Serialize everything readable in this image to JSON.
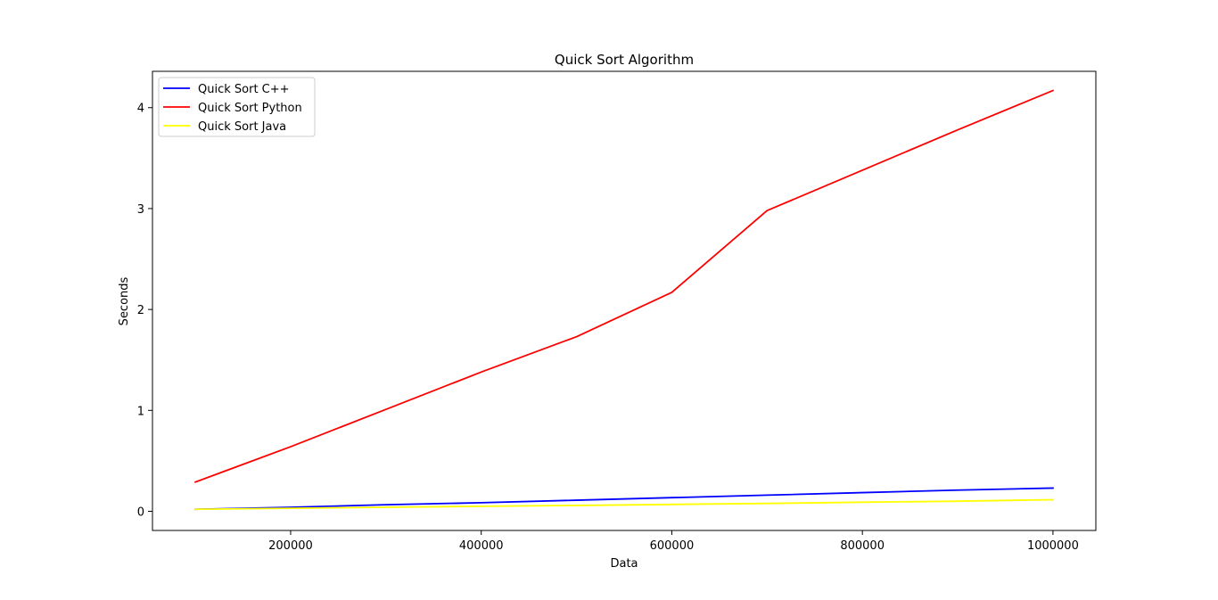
{
  "chart_data": {
    "type": "line",
    "title": "Quick Sort Algorithm",
    "xlabel": "Data",
    "ylabel": "Seconds",
    "xlim": [
      55000,
      1045000
    ],
    "ylim": [
      -0.19,
      4.36
    ],
    "x_ticks": [
      200000,
      400000,
      600000,
      800000,
      1000000
    ],
    "x_tick_labels": [
      "200000",
      "400000",
      "600000",
      "800000",
      "1000000"
    ],
    "y_ticks": [
      0,
      1,
      2,
      3,
      4
    ],
    "y_tick_labels": [
      "0",
      "1",
      "2",
      "3",
      "4"
    ],
    "grid": false,
    "legend_position": "top-left",
    "series": [
      {
        "name": "Quick Sort C++",
        "color": "#0000ff",
        "x": [
          100000,
          200000,
          300000,
          400000,
          500000,
          600000,
          700000,
          800000,
          900000,
          1000000
        ],
        "y": [
          0.02,
          0.04,
          0.065,
          0.085,
          0.11,
          0.135,
          0.16,
          0.185,
          0.21,
          0.23
        ]
      },
      {
        "name": "Quick Sort Python",
        "color": "#ff0000",
        "x": [
          100000,
          200000,
          300000,
          400000,
          500000,
          600000,
          700000,
          800000,
          900000,
          1000000
        ],
        "y": [
          0.29,
          0.64,
          1.01,
          1.38,
          1.73,
          2.17,
          2.98,
          3.38,
          3.78,
          4.17
        ]
      },
      {
        "name": "Quick Sort Java",
        "color": "#ffff00",
        "x": [
          100000,
          200000,
          300000,
          400000,
          500000,
          600000,
          700000,
          800000,
          900000,
          1000000
        ],
        "y": [
          0.02,
          0.03,
          0.04,
          0.05,
          0.058,
          0.068,
          0.078,
          0.09,
          0.1,
          0.115
        ]
      }
    ]
  }
}
